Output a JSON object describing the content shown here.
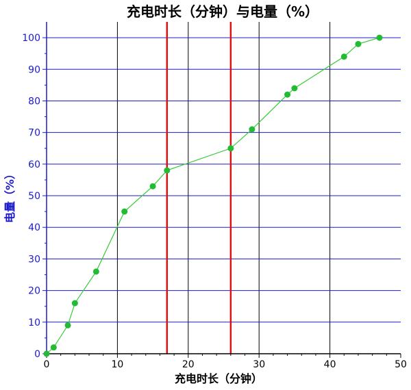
{
  "chart_data": {
    "type": "line",
    "title": "充电时长（分钟）与电量（%）",
    "xlabel": "充电时长（分钟）",
    "ylabel": "电量（%）",
    "xlim": [
      0,
      50
    ],
    "ylim": [
      0,
      105
    ],
    "xticks": [
      0,
      10,
      20,
      30,
      40,
      50
    ],
    "yticks": [
      0,
      10,
      20,
      30,
      40,
      50,
      60,
      70,
      80,
      90,
      100
    ],
    "x_gridlines": [
      10,
      20,
      30,
      40
    ],
    "y_gridlines": [
      10,
      20,
      30,
      40,
      50,
      60,
      70,
      80,
      90,
      100
    ],
    "vertical_markers": [
      17,
      26
    ],
    "series": [
      {
        "x": [
          0,
          1,
          3,
          4,
          7,
          11,
          15,
          17,
          26,
          29,
          34,
          35,
          42,
          44,
          47
        ],
        "y": [
          0,
          2,
          9,
          16,
          26,
          45,
          53,
          58,
          65,
          71,
          82,
          84,
          94,
          98,
          100
        ]
      }
    ],
    "colors": {
      "line": "#33cc33",
      "marker": "#22bb33",
      "x_grid": "#000000",
      "y_grid": "#1a1acc",
      "vertical_marker": "#dd1111",
      "y_axis_text": "#1a1acc"
    }
  }
}
